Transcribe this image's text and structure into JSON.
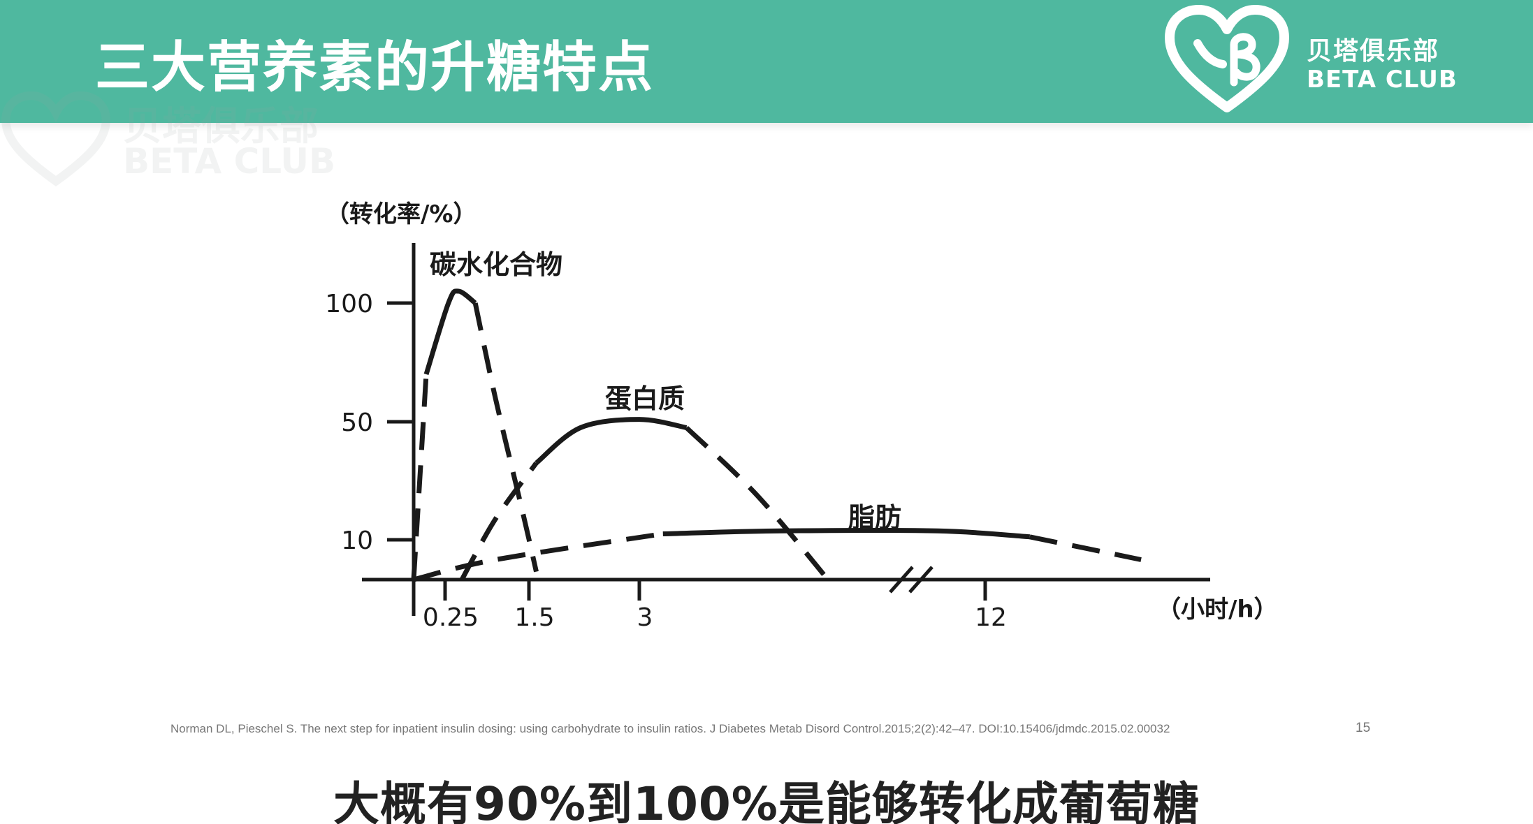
{
  "slide": {
    "title": "三大营养素的升糖特点",
    "page_number": "15"
  },
  "brand": {
    "name_cn": "贝塔俱乐部",
    "name_en": "BETA CLUB",
    "logo_icon": "heart-logo-icon",
    "header_color": "#4fb89f"
  },
  "watermark": {
    "name_cn": "贝塔俱乐部",
    "name_en": "BETA CLUB"
  },
  "reference": "Norman DL, Pieschel S. The next step for inpatient insulin dosing: using carbohydrate to insulin ratios. J Diabetes Metab Disord Control.2015;2(2):42–47. DOI:10.15406/jdmdc.2015.02.00032",
  "subtitle": "大概有90%到100%是能够转化成葡萄糖",
  "chart_data": {
    "type": "line",
    "title": "",
    "xlabel": "（小时/h）",
    "ylabel": "（转化率/%）",
    "x_ticks": [
      "0.25",
      "1.5",
      "3",
      "12"
    ],
    "y_ticks": [
      "10",
      "50",
      "100"
    ],
    "axis_break": "between 3 and 12",
    "grid": false,
    "line_style": "solid segment followed by dashed segment",
    "series": [
      {
        "name": "碳水化合物",
        "points": [
          [
            0.0,
            0
          ],
          [
            0.1,
            70
          ],
          [
            0.3,
            100
          ],
          [
            0.45,
            105
          ],
          [
            0.7,
            100
          ],
          [
            1.0,
            60
          ],
          [
            1.4,
            20
          ],
          [
            1.6,
            2
          ]
        ]
      },
      {
        "name": "蛋白质",
        "points": [
          [
            0.5,
            0
          ],
          [
            1.0,
            17
          ],
          [
            1.6,
            36
          ],
          [
            2.2,
            48
          ],
          [
            3.0,
            51
          ],
          [
            4.0,
            48
          ],
          [
            5.5,
            25
          ],
          [
            7.0,
            0
          ]
        ]
      },
      {
        "name": "脂肪",
        "points": [
          [
            0.0,
            0
          ],
          [
            1.0,
            5
          ],
          [
            3.5,
            12
          ],
          [
            6.0,
            13
          ],
          [
            10.5,
            13
          ],
          [
            13.0,
            11
          ],
          [
            15.5,
            5
          ]
        ]
      }
    ]
  }
}
